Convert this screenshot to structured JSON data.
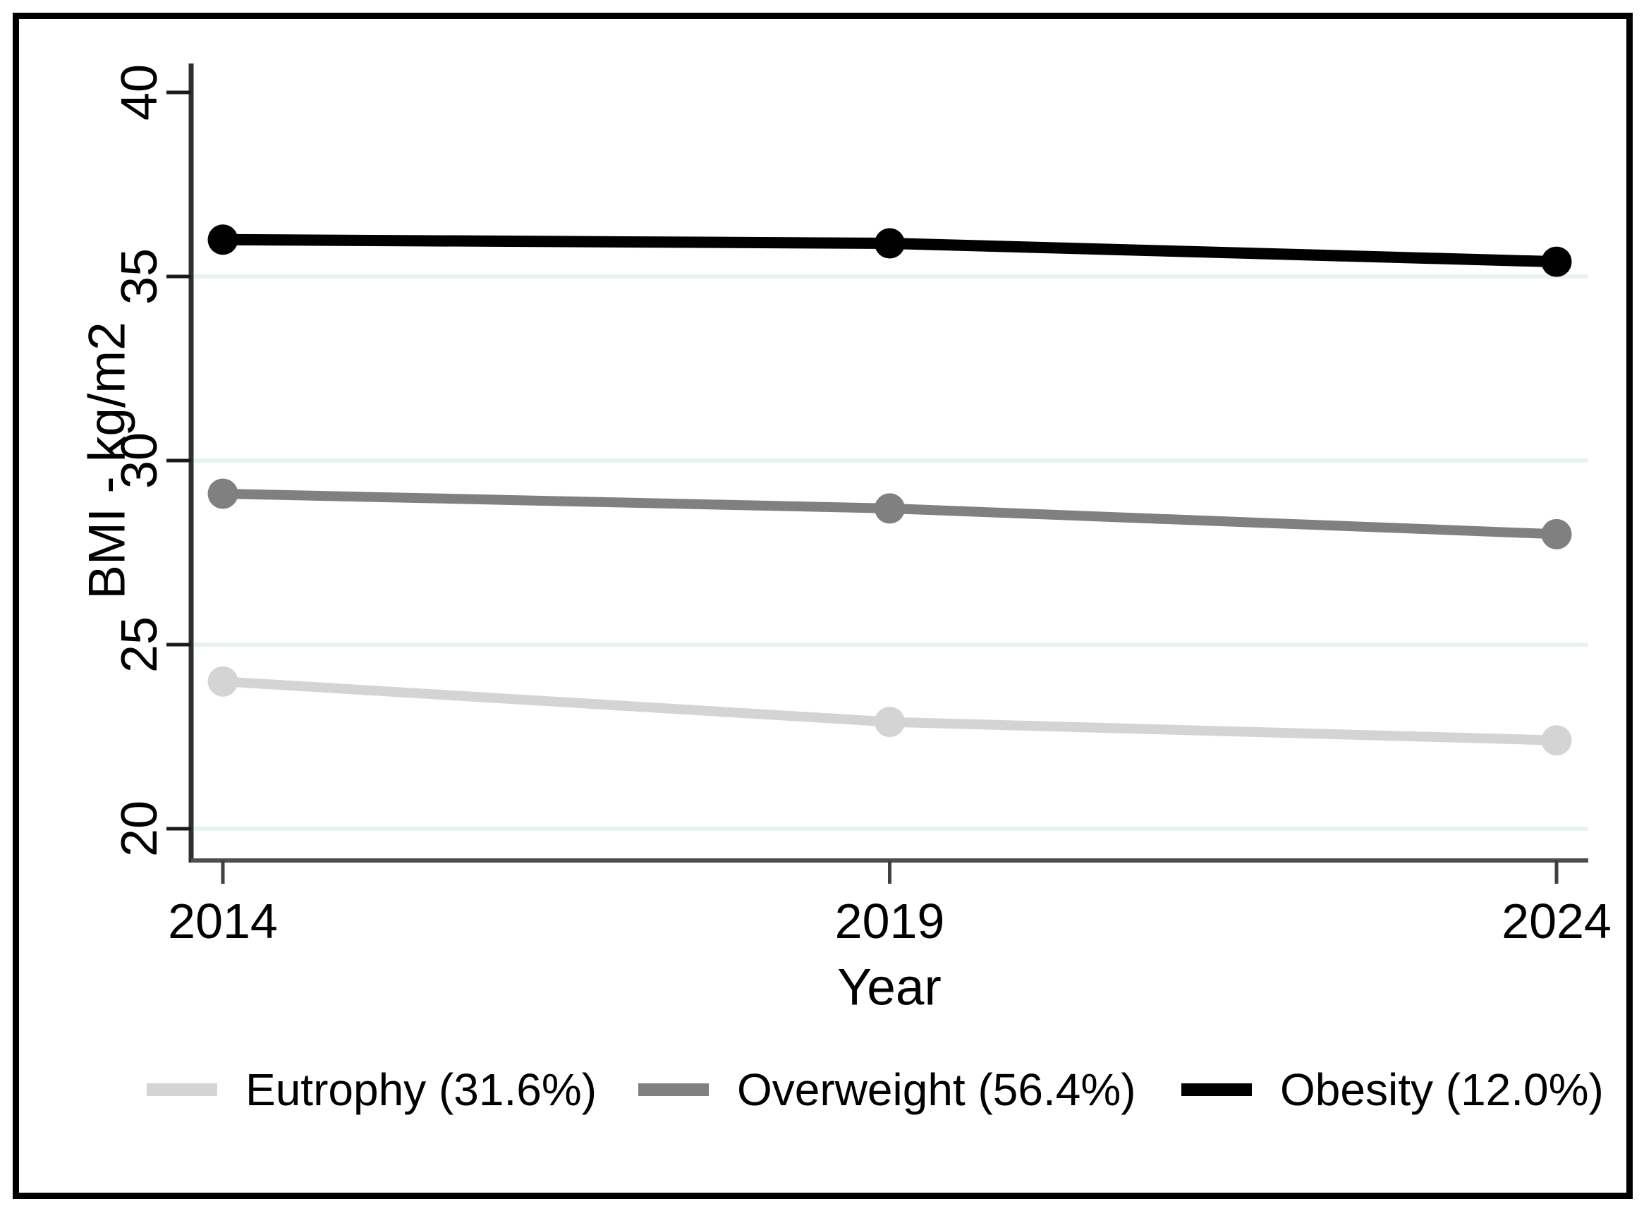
{
  "figure": {
    "background": "#ffffff",
    "border_color": "#000000"
  },
  "chart_data": {
    "type": "line",
    "title": "",
    "xlabel": "Year",
    "ylabel": "BMI - kg/m2",
    "x": [
      2014,
      2019,
      2024
    ],
    "xtick_labels": [
      "2014",
      "2019",
      "2024"
    ],
    "yticks": [
      40,
      35,
      30,
      25,
      20
    ],
    "ytick_labels": [
      "40",
      "35",
      "30",
      "25",
      "20"
    ],
    "ylim": [
      20,
      40
    ],
    "gridlines_at": [
      35,
      30,
      25,
      20
    ],
    "grid_color": "#e9f1f1",
    "axis_color_y": "#2f2f2f",
    "axis_color_x": "#4d4d4d",
    "tick_color_y": "#1a1a1a",
    "tick_color_x": "#404040",
    "legend_position": "bottom",
    "series": [
      {
        "name": "Eutrophy (31.6%)",
        "color": "#d4d4d4",
        "stroke_width": 14,
        "values": [
          24.0,
          22.9,
          22.4
        ]
      },
      {
        "name": "Overweight (56.4%)",
        "color": "#808080",
        "stroke_width": 14,
        "values": [
          29.1,
          28.7,
          28.0
        ]
      },
      {
        "name": "Obesity (12.0%)",
        "color": "#000000",
        "stroke_width": 16,
        "values": [
          36.0,
          35.9,
          35.4
        ]
      }
    ]
  }
}
